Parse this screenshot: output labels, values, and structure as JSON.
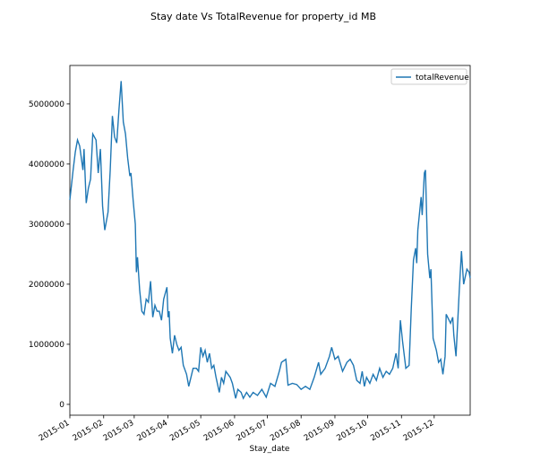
{
  "chart_data": {
    "type": "line",
    "title": "Stay date Vs TotalRevenue for property_id MB",
    "x_label": "Stay_date",
    "legend": "upper right",
    "xlim": [
      0,
      367
    ],
    "xticks": [
      {
        "value": 0,
        "label": "2015-01"
      },
      {
        "value": 31,
        "label": "2015-02"
      },
      {
        "value": 59,
        "label": "2015-03"
      },
      {
        "value": 90,
        "label": "2015-04"
      },
      {
        "value": 120,
        "label": "2015-05"
      },
      {
        "value": 151,
        "label": "2015-06"
      },
      {
        "value": 181,
        "label": "2015-07"
      },
      {
        "value": 212,
        "label": "2015-08"
      },
      {
        "value": 243,
        "label": "2015-09"
      },
      {
        "value": 273,
        "label": "2015-10"
      },
      {
        "value": 304,
        "label": "2015-11"
      },
      {
        "value": 334,
        "label": "2015-12"
      }
    ],
    "ylim": [
      -180000,
      5640000
    ],
    "yticks": [
      0,
      1000000,
      2000000,
      3000000,
      4000000,
      5000000
    ],
    "x": [
      0,
      3,
      5,
      7,
      9,
      12,
      13,
      15,
      17,
      19,
      21,
      24,
      26,
      28,
      30,
      32,
      35,
      37,
      39,
      41,
      43,
      45,
      47,
      49,
      51,
      53,
      55,
      56,
      58,
      60,
      61,
      62,
      64,
      66,
      68,
      70,
      72,
      74,
      76,
      78,
      80,
      82,
      84,
      86,
      89,
      90,
      91,
      92,
      94,
      96,
      98,
      100,
      102,
      104,
      107,
      109,
      111,
      113,
      116,
      118,
      120,
      122,
      124,
      126,
      128,
      130,
      132,
      134,
      137,
      139,
      141,
      143,
      145,
      147,
      149,
      152,
      154,
      157,
      159,
      162,
      165,
      168,
      172,
      176,
      180,
      184,
      188,
      192,
      194,
      198,
      200,
      204,
      208,
      212,
      216,
      220,
      224,
      228,
      230,
      234,
      238,
      240,
      243,
      246,
      250,
      254,
      257,
      260,
      263,
      266,
      268,
      270,
      272,
      275,
      278,
      281,
      284,
      287,
      290,
      293,
      296,
      299,
      301,
      303,
      305,
      308,
      311,
      313,
      315,
      317,
      318,
      319,
      322,
      323,
      325,
      326,
      328,
      330,
      331,
      333,
      336,
      338,
      340,
      342,
      344,
      345,
      349,
      351,
      352,
      354,
      357,
      359,
      361,
      364,
      366,
      367
    ],
    "series": [
      {
        "name": "totalRevenue",
        "color": "#1f77b4",
        "values": [
          3400000,
          3900000,
          4200000,
          4400000,
          4300000,
          3900000,
          4250000,
          3350000,
          3600000,
          3750000,
          4500000,
          4400000,
          3850000,
          4250000,
          3300000,
          2900000,
          3200000,
          3900000,
          4800000,
          4450000,
          4350000,
          4900000,
          5380000,
          4700000,
          4500000,
          4100000,
          3800000,
          3850000,
          3400000,
          3000000,
          2200000,
          2450000,
          1900000,
          1550000,
          1500000,
          1750000,
          1700000,
          2050000,
          1450000,
          1650000,
          1550000,
          1550000,
          1400000,
          1750000,
          1950000,
          1450000,
          1550000,
          1100000,
          850000,
          1150000,
          1000000,
          900000,
          950000,
          650000,
          500000,
          300000,
          450000,
          600000,
          600000,
          550000,
          950000,
          800000,
          900000,
          700000,
          850000,
          600000,
          650000,
          450000,
          200000,
          450000,
          350000,
          550000,
          500000,
          450000,
          350000,
          100000,
          250000,
          200000,
          100000,
          200000,
          120000,
          200000,
          150000,
          250000,
          120000,
          350000,
          300000,
          550000,
          700000,
          750000,
          320000,
          350000,
          330000,
          250000,
          300000,
          250000,
          450000,
          700000,
          500000,
          600000,
          800000,
          950000,
          750000,
          800000,
          550000,
          700000,
          750000,
          650000,
          400000,
          350000,
          550000,
          300000,
          450000,
          350000,
          500000,
          400000,
          600000,
          450000,
          550000,
          500000,
          600000,
          850000,
          600000,
          1400000,
          1050000,
          600000,
          650000,
          1600000,
          2400000,
          2600000,
          2350000,
          2900000,
          3450000,
          3150000,
          3850000,
          3900000,
          2500000,
          2100000,
          2250000,
          1100000,
          900000,
          700000,
          750000,
          500000,
          800000,
          1500000,
          1350000,
          1450000,
          1150000,
          800000,
          1900000,
          2550000,
          2000000,
          2250000,
          2200000,
          2100000
        ]
      }
    ]
  }
}
